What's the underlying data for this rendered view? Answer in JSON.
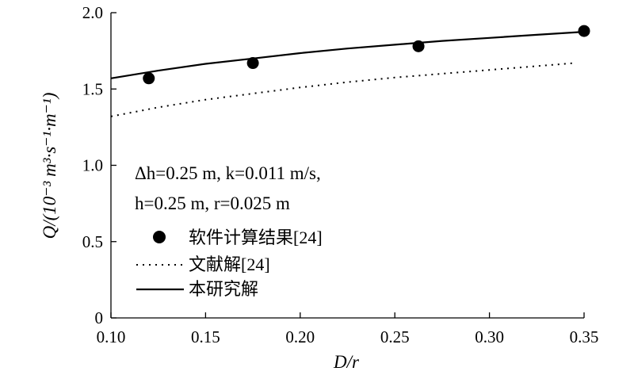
{
  "chart_data": {
    "type": "line",
    "title": "",
    "xlabel": "D/r",
    "ylabel": "Q/(10⁻³ m³·s⁻¹·m⁻¹)",
    "xlim": [
      0.1,
      0.35
    ],
    "ylim": [
      0,
      2.0
    ],
    "x_ticks": [
      "0.10",
      "0.15",
      "0.20",
      "0.25",
      "0.30",
      "0.35"
    ],
    "y_ticks": [
      "0",
      "0.5",
      "1.0",
      "1.5",
      "2.0"
    ],
    "grid": false,
    "legend_position": "bottom-left",
    "annotation_lines": [
      "Δh=0.25 m, k=0.011 m/s,",
      "h=0.25 m, r=0.025 m"
    ],
    "series": [
      {
        "name": "软件计算结果[24]",
        "style": "marker",
        "color": "#000000",
        "x": [
          0.12,
          0.175,
          0.2625,
          0.35
        ],
        "y": [
          1.57,
          1.67,
          1.78,
          1.88
        ]
      },
      {
        "name": "文献解[24]",
        "style": "dotted",
        "color": "#000000",
        "x": [
          0.1,
          0.125,
          0.15,
          0.175,
          0.2,
          0.225,
          0.25,
          0.275,
          0.3,
          0.325,
          0.345
        ],
        "y": [
          1.32,
          1.38,
          1.43,
          1.47,
          1.51,
          1.545,
          1.575,
          1.6,
          1.625,
          1.65,
          1.67
        ]
      },
      {
        "name": "本研究解",
        "style": "solid",
        "color": "#000000",
        "x": [
          0.1,
          0.125,
          0.15,
          0.175,
          0.2,
          0.225,
          0.25,
          0.275,
          0.3,
          0.325,
          0.35
        ],
        "y": [
          1.57,
          1.62,
          1.665,
          1.7,
          1.735,
          1.765,
          1.79,
          1.815,
          1.835,
          1.855,
          1.875
        ]
      }
    ]
  }
}
